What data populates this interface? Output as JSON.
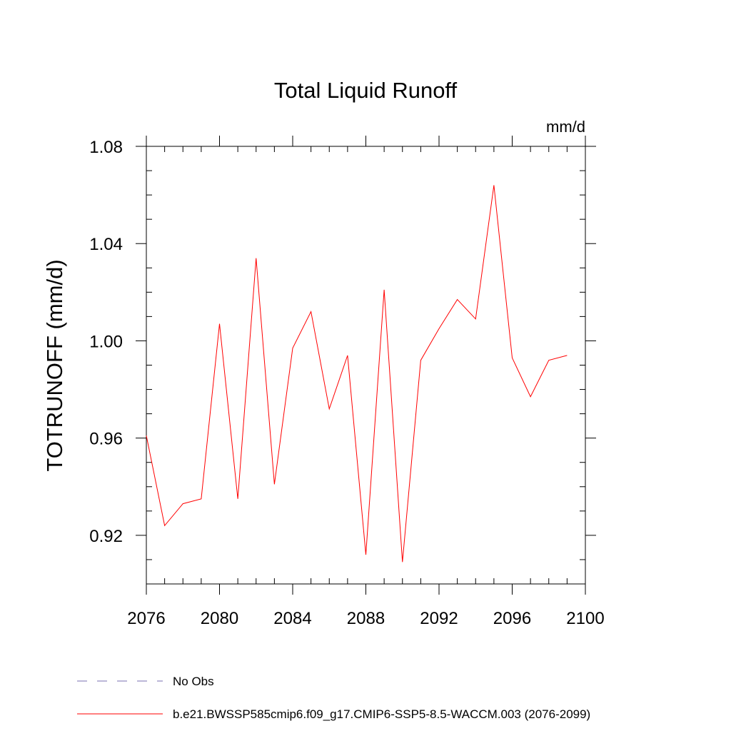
{
  "chart_data": {
    "type": "line",
    "title": "Total Liquid Runoff",
    "units_label": "mm/d",
    "y_label": "TOTRUNOFF  (mm/d)",
    "x": [
      2076,
      2077,
      2078,
      2079,
      2080,
      2081,
      2082,
      2083,
      2084,
      2085,
      2086,
      2087,
      2088,
      2089,
      2090,
      2091,
      2092,
      2093,
      2094,
      2095,
      2096,
      2097,
      2098,
      2099
    ],
    "series": [
      {
        "name": "b.e21.BWSSP585cmip6.f09_g17.CMIP6-SSP5-8.5-WACCM.003 (2076-2099)",
        "color": "#ff0000",
        "values": [
          0.961,
          0.924,
          0.933,
          0.935,
          1.007,
          0.935,
          1.034,
          0.941,
          0.997,
          1.012,
          0.972,
          0.994,
          0.912,
          1.021,
          0.909,
          0.992,
          1.005,
          1.017,
          1.009,
          1.064,
          0.993,
          0.977,
          0.992,
          0.994
        ]
      }
    ],
    "legend_extra": [
      {
        "name": "No Obs",
        "color": "#7a6fb0",
        "dashed": true
      }
    ],
    "xlim": [
      2076,
      2100
    ],
    "xticks": [
      2076,
      2080,
      2084,
      2088,
      2092,
      2096,
      2100
    ],
    "xminorticks": [
      2077,
      2078,
      2079,
      2081,
      2082,
      2083,
      2085,
      2086,
      2087,
      2089,
      2090,
      2091,
      2093,
      2094,
      2095,
      2097,
      2098,
      2099
    ],
    "ylim": [
      0.9,
      1.08
    ],
    "yticks": [
      0.92,
      0.96,
      {
        "value": 1,
        "label": "1.00"
      },
      1.04,
      1.08
    ],
    "yminorticks": [
      0.9,
      0.91,
      0.93,
      0.94,
      0.95,
      0.97,
      0.98,
      0.99,
      1.01,
      1.02,
      1.03,
      1.05,
      1.06,
      1.07
    ],
    "grid": false
  }
}
